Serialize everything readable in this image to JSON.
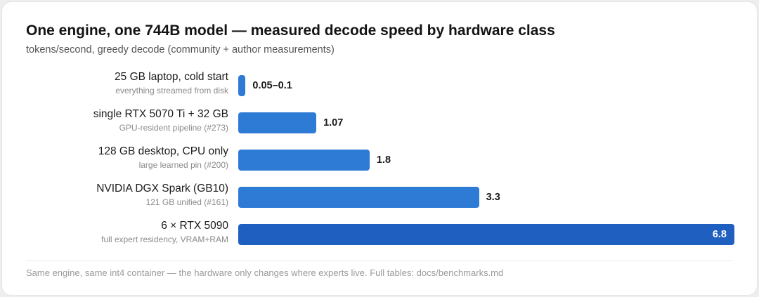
{
  "title": "One engine, one 744B model — measured decode speed by hardware class",
  "subtitle": "tokens/second, greedy decode (community + author measurements)",
  "footnote": "Same engine, same int4 container — the hardware only changes where experts live. Full tables: docs/benchmarks.md",
  "colors": {
    "bar": "#2e7bd6",
    "bar_highlight": "#1f5fbf"
  },
  "chart_data": {
    "type": "bar",
    "orientation": "horizontal",
    "title": "One engine, one 744B model — measured decode speed by hardware class",
    "subtitle": "tokens/second, greedy decode (community + author measurements)",
    "xlim": [
      0,
      6.8
    ],
    "grid": false,
    "legend": "none",
    "categories": [
      "25 GB laptop, cold start",
      "single RTX 5070 Ti + 32 GB",
      "128 GB desktop, CPU only",
      "NVIDIA DGX Spark (GB10)",
      "6 × RTX 5090"
    ],
    "sublabels": [
      "everything streamed from disk",
      "GPU-resident pipeline (#273)",
      "large learned pin (#200)",
      "121 GB unified (#161)",
      "full expert residency, VRAM+RAM"
    ],
    "values": [
      0.1,
      1.07,
      1.8,
      3.3,
      6.8
    ],
    "value_labels": [
      "0.05–0.1",
      "1.07",
      "1.8",
      "3.3",
      "6.8"
    ],
    "highlight_index": 4
  }
}
